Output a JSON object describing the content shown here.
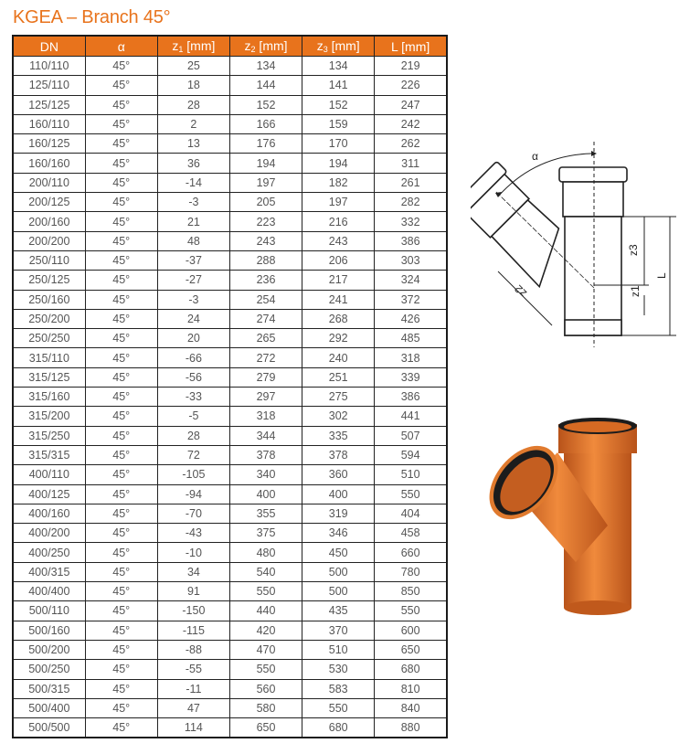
{
  "title": "KGEA – Branch 45°",
  "colors": {
    "accent": "#e8731c",
    "pipe": "#d9671e"
  },
  "table": {
    "headers": [
      {
        "main": "DN",
        "sub": "",
        "unit": ""
      },
      {
        "main": "α",
        "sub": "",
        "unit": ""
      },
      {
        "main": "z",
        "sub": "1",
        "unit": " [mm]"
      },
      {
        "main": "z",
        "sub": "2",
        "unit": " [mm]"
      },
      {
        "main": "z",
        "sub": "3",
        "unit": " [mm]"
      },
      {
        "main": "L",
        "sub": "",
        "unit": " [mm]"
      }
    ],
    "rows": [
      [
        "110/110",
        "45°",
        "25",
        "134",
        "134",
        "219"
      ],
      [
        "125/110",
        "45°",
        "18",
        "144",
        "141",
        "226"
      ],
      [
        "125/125",
        "45°",
        "28",
        "152",
        "152",
        "247"
      ],
      [
        "160/110",
        "45°",
        "2",
        "166",
        "159",
        "242"
      ],
      [
        "160/125",
        "45°",
        "13",
        "176",
        "170",
        "262"
      ],
      [
        "160/160",
        "45°",
        "36",
        "194",
        "194",
        "311"
      ],
      [
        "200/110",
        "45°",
        "-14",
        "197",
        "182",
        "261"
      ],
      [
        "200/125",
        "45°",
        "-3",
        "205",
        "197",
        "282"
      ],
      [
        "200/160",
        "45°",
        "21",
        "223",
        "216",
        "332"
      ],
      [
        "200/200",
        "45°",
        "48",
        "243",
        "243",
        "386"
      ],
      [
        "250/110",
        "45°",
        "-37",
        "288",
        "206",
        "303"
      ],
      [
        "250/125",
        "45°",
        "-27",
        "236",
        "217",
        "324"
      ],
      [
        "250/160",
        "45°",
        "-3",
        "254",
        "241",
        "372"
      ],
      [
        "250/200",
        "45°",
        "24",
        "274",
        "268",
        "426"
      ],
      [
        "250/250",
        "45°",
        "20",
        "265",
        "292",
        "485"
      ],
      [
        "315/110",
        "45°",
        "-66",
        "272",
        "240",
        "318"
      ],
      [
        "315/125",
        "45°",
        "-56",
        "279",
        "251",
        "339"
      ],
      [
        "315/160",
        "45°",
        "-33",
        "297",
        "275",
        "386"
      ],
      [
        "315/200",
        "45°",
        "-5",
        "318",
        "302",
        "441"
      ],
      [
        "315/250",
        "45°",
        "28",
        "344",
        "335",
        "507"
      ],
      [
        "315/315",
        "45°",
        "72",
        "378",
        "378",
        "594"
      ],
      [
        "400/110",
        "45°",
        "-105",
        "340",
        "360",
        "510"
      ],
      [
        "400/125",
        "45°",
        "-94",
        "400",
        "400",
        "550"
      ],
      [
        "400/160",
        "45°",
        "-70",
        "355",
        "319",
        "404"
      ],
      [
        "400/200",
        "45°",
        "-43",
        "375",
        "346",
        "458"
      ],
      [
        "400/250",
        "45°",
        "-10",
        "480",
        "450",
        "660"
      ],
      [
        "400/315",
        "45°",
        "34",
        "540",
        "500",
        "780"
      ],
      [
        "400/400",
        "45°",
        "91",
        "550",
        "500",
        "850"
      ],
      [
        "500/110",
        "45°",
        "-150",
        "440",
        "435",
        "550"
      ],
      [
        "500/160",
        "45°",
        "-115",
        "420",
        "370",
        "600"
      ],
      [
        "500/200",
        "45°",
        "-88",
        "470",
        "510",
        "650"
      ],
      [
        "500/250",
        "45°",
        "-55",
        "550",
        "530",
        "680"
      ],
      [
        "500/315",
        "45°",
        "-11",
        "560",
        "583",
        "810"
      ],
      [
        "500/400",
        "45°",
        "47",
        "580",
        "550",
        "840"
      ],
      [
        "500/500",
        "45°",
        "114",
        "650",
        "680",
        "880"
      ]
    ]
  },
  "drawing": {
    "alpha": "α",
    "z1": "z1",
    "z2": "z2",
    "z3": "z3",
    "L": "L"
  }
}
